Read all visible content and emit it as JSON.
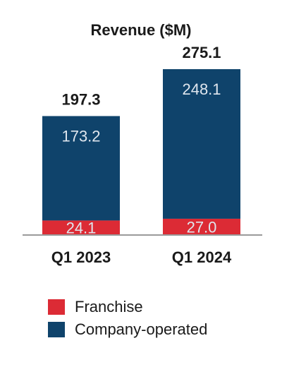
{
  "chart_data": {
    "type": "bar",
    "stacked": true,
    "title": "Revenue ($M)",
    "categories": [
      "Q1 2023",
      "Q1 2024"
    ],
    "totals": [
      "197.3",
      "275.1"
    ],
    "series": [
      {
        "name": "Franchise",
        "color": "#dc2b35",
        "values": [
          24.1,
          27.0
        ],
        "labels": [
          "24.1",
          "27.0"
        ]
      },
      {
        "name": "Company-operated",
        "color": "#0f436b",
        "values": [
          173.2,
          248.1
        ],
        "labels": [
          "173.2",
          "248.1"
        ]
      }
    ],
    "xlabel": "",
    "ylabel": "",
    "ylim": [
      0,
      275.1
    ],
    "grid": false,
    "legend_position": "bottom-left"
  }
}
